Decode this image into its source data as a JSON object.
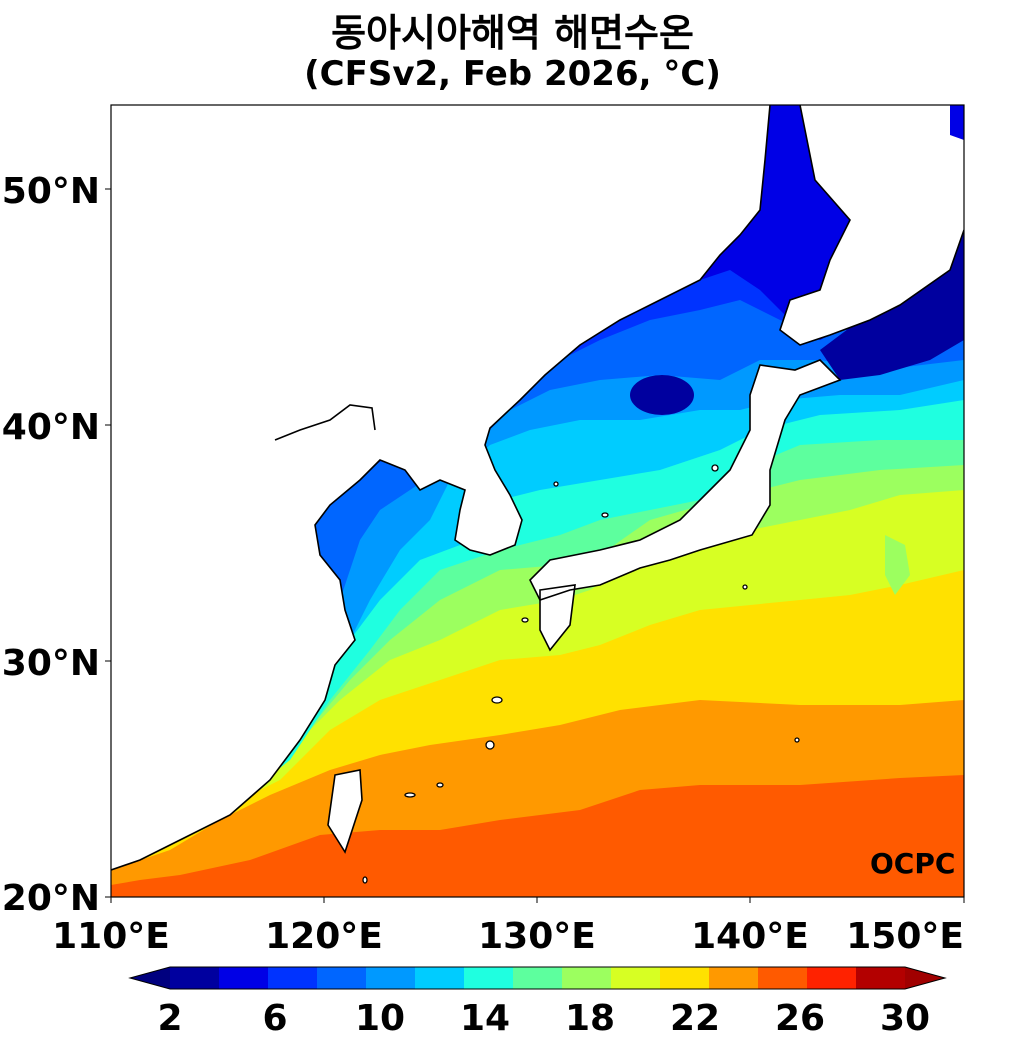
{
  "title": "동아시아해역 해면수온",
  "subtitle": "(CFSv2, Feb 2026, °C)",
  "map": {
    "lon_range": [
      110,
      150
    ],
    "lat_range": [
      20,
      53.5
    ],
    "lon_ticks": [
      "110°E",
      "120°E",
      "130°E",
      "140°E",
      "150°E"
    ],
    "lat_ticks": [
      "20°N",
      "30°N",
      "40°N",
      "50°N"
    ],
    "land_color": "#ffffff",
    "coastline_color": "#000000"
  },
  "watermark": "OCPC",
  "colorbar": {
    "orientation": "horizontal",
    "extend": "both",
    "tick_labels": [
      "2",
      "6",
      "10",
      "14",
      "18",
      "22",
      "26",
      "30"
    ],
    "under_color": "#00007f",
    "over_color": "#a00000",
    "colors": [
      "#00009f",
      "#0000e6",
      "#0033ff",
      "#0066ff",
      "#0099ff",
      "#00ccff",
      "#1fffe0",
      "#5dff9e",
      "#9cff5f",
      "#d7ff23",
      "#ffe100",
      "#ff9900",
      "#ff5a00",
      "#ff2200",
      "#b30000"
    ]
  },
  "sst_bands": [
    {
      "level": "22-24",
      "color": "#ff9900"
    },
    {
      "level": "20-22",
      "color": "#ffe100"
    },
    {
      "level": "18-20",
      "color": "#d7ff23"
    },
    {
      "level": "16-18",
      "color": "#9cff5f"
    },
    {
      "level": "14-16",
      "color": "#5dff9e"
    },
    {
      "level": "12-14",
      "color": "#1fffe0"
    },
    {
      "level": "10-12",
      "color": "#00ccff"
    },
    {
      "level": "8-10",
      "color": "#0099ff"
    },
    {
      "level": "6-8",
      "color": "#0066ff"
    },
    {
      "level": "4-6",
      "color": "#0033ff"
    },
    {
      "level": "2-4",
      "color": "#0000e6"
    }
  ]
}
